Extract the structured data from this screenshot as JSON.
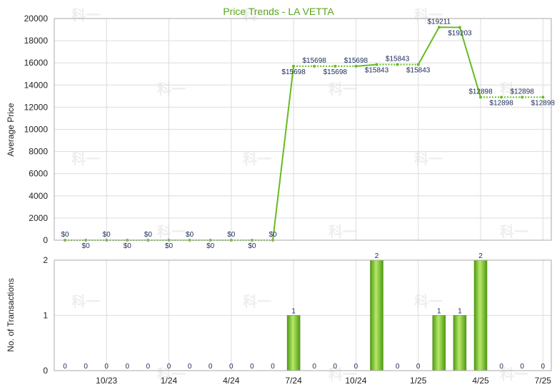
{
  "chart_data": [
    {
      "type": "line",
      "title": "Price Trends - LA VETTA",
      "ylabel": "Average Price",
      "ylim": [
        0,
        20000
      ],
      "yticks": [
        0,
        2000,
        4000,
        6000,
        8000,
        10000,
        12000,
        14000,
        16000,
        18000,
        20000
      ],
      "x_ticks": [
        "10/23",
        "1/24",
        "4/24",
        "7/24",
        "10/24",
        "1/25",
        "4/25",
        "7/25"
      ],
      "series": [
        {
          "values": [
            0,
            0,
            0,
            0,
            0,
            0,
            0,
            0,
            0,
            0,
            0,
            15698,
            15698,
            15698,
            15698,
            15843,
            15843,
            15843,
            19211,
            19203,
            12898,
            12898,
            12898,
            12898
          ],
          "labels": [
            "$0",
            "$0",
            "$0",
            "$0",
            "$0",
            "$0",
            "$0",
            "$0",
            "$0",
            "$0",
            "$0",
            "$15698",
            "$15698",
            "$15698",
            "$15698",
            "$15843",
            "$15843",
            "$15843",
            "$19211",
            "$19203",
            "$12898",
            "$12898",
            "$12898",
            "$12898"
          ],
          "color": "#66bb22"
        }
      ]
    },
    {
      "type": "bar",
      "ylabel": "No. of Transactions",
      "ylim": [
        0,
        2
      ],
      "yticks": [
        0,
        1,
        2
      ],
      "values": [
        0,
        0,
        0,
        0,
        0,
        0,
        0,
        0,
        0,
        0,
        0,
        1,
        0,
        0,
        0,
        2,
        0,
        0,
        1,
        1,
        2,
        0,
        0,
        0
      ],
      "labels": [
        "0",
        "0",
        "0",
        "0",
        "0",
        "0",
        "0",
        "0",
        "0",
        "0",
        "0",
        "1",
        "0",
        "0",
        "0",
        "2",
        "0",
        "0",
        "1",
        "1",
        "2",
        "0",
        "0",
        "0"
      ],
      "color": "#77c028"
    }
  ],
  "watermark": "科一"
}
